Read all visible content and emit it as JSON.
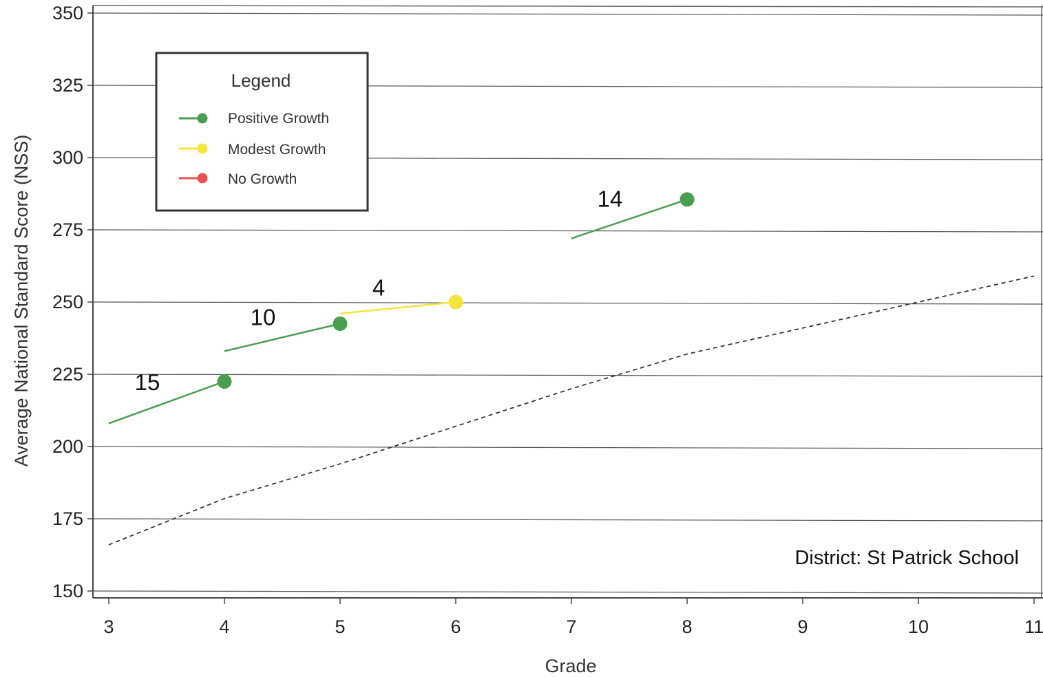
{
  "chart_data": {
    "type": "line",
    "xlabel": "Grade",
    "ylabel": "Average National Standard Score (NSS)",
    "xlim": [
      3,
      11
    ],
    "ylim": [
      150,
      350
    ],
    "x_ticks": [
      3,
      4,
      5,
      6,
      7,
      8,
      9,
      10,
      11
    ],
    "y_ticks": [
      150,
      175,
      200,
      225,
      250,
      275,
      300,
      325,
      350
    ],
    "grid": "horizontal",
    "legend": {
      "title": "Legend",
      "placement": "top-left",
      "items": [
        {
          "label": "Positive Growth",
          "color": "#4a9e4f"
        },
        {
          "label": "Modest Growth",
          "color": "#f3e53a"
        },
        {
          "label": "No Growth",
          "color": "#e8514f"
        }
      ]
    },
    "segments": [
      {
        "label": "15",
        "category": "Positive Growth",
        "x": [
          3,
          4
        ],
        "y": [
          208,
          222.5
        ]
      },
      {
        "label": "10",
        "category": "Positive Growth",
        "x": [
          4,
          5
        ],
        "y": [
          233,
          242.5
        ]
      },
      {
        "label": "4",
        "category": "Modest Growth",
        "x": [
          5,
          6
        ],
        "y": [
          246,
          250
        ]
      },
      {
        "label": "14",
        "category": "Positive Growth",
        "x": [
          7,
          8
        ],
        "y": [
          272,
          285.5
        ]
      }
    ],
    "reference_line": {
      "style": "dashed",
      "color": "#333333",
      "x": [
        3,
        4,
        5,
        6,
        7,
        8,
        9,
        10,
        11
      ],
      "y": [
        166,
        182,
        194,
        207,
        220,
        232,
        241,
        250,
        259
      ]
    },
    "annotation": "District: St Patrick School"
  }
}
